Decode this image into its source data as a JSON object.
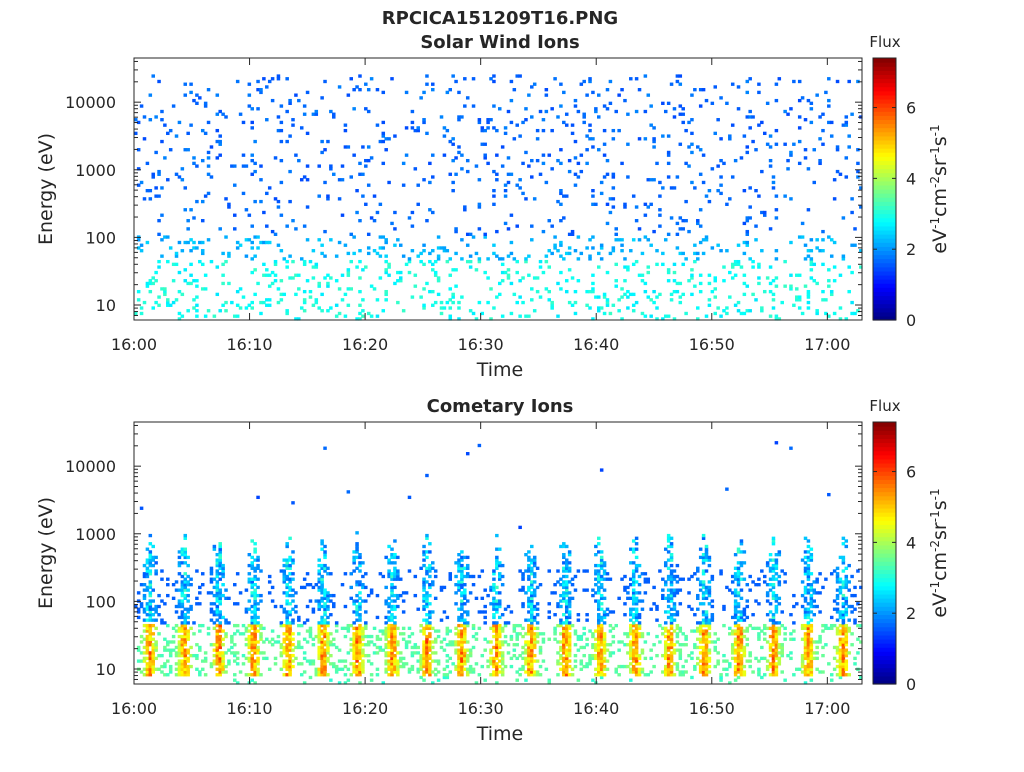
{
  "figure": {
    "title": "RPCICA151209T16.PNG"
  },
  "colorbar": {
    "label": "Flux",
    "unit_label_parts": [
      "eV",
      "-1",
      "cm",
      "-2",
      "sr",
      "-1",
      "s",
      "-1"
    ],
    "ticks": [
      "0",
      "2",
      "4",
      "6"
    ],
    "range": [
      0,
      7.4
    ],
    "colormap": "jet"
  },
  "chart_data": [
    {
      "type": "heatmap",
      "title": "Solar Wind Ions",
      "xlabel": "Time",
      "ylabel": "Energy (eV)",
      "x_ticks": [
        "16:00",
        "16:10",
        "16:20",
        "16:30",
        "16:40",
        "16:50",
        "17:00"
      ],
      "y_ticks": [
        "10",
        "100",
        "1000",
        "10000"
      ],
      "y_scale": "log",
      "xlim_minutes": [
        0,
        63
      ],
      "ylim_eV": [
        6,
        45000
      ],
      "grid": false,
      "pattern": "solar_wind",
      "description_data": {
        "low_energy_band_eV": [
          6,
          45
        ],
        "low_energy_flux": [
          2.5,
          3.2
        ],
        "scatter_energy_eV": [
          100,
          22000
        ],
        "scatter_flux": [
          1.5,
          2.0
        ]
      }
    },
    {
      "type": "heatmap",
      "title": "Cometary Ions",
      "xlabel": "Time",
      "ylabel": "Energy (eV)",
      "x_ticks": [
        "16:00",
        "16:10",
        "16:20",
        "16:30",
        "16:40",
        "16:50",
        "17:00"
      ],
      "y_ticks": [
        "10",
        "100",
        "1000",
        "10000"
      ],
      "y_scale": "log",
      "xlim_minutes": [
        0,
        63
      ],
      "ylim_eV": [
        6,
        45000
      ],
      "grid": false,
      "pattern": "cometary",
      "description_data": {
        "burst_period_minutes": 3.0,
        "core_energy_eV": [
          10,
          45
        ],
        "core_flux": [
          3.5,
          5.8
        ],
        "spike_top_eV": [
          300,
          1200
        ],
        "spike_flux": [
          1.5,
          3.2
        ]
      }
    }
  ]
}
